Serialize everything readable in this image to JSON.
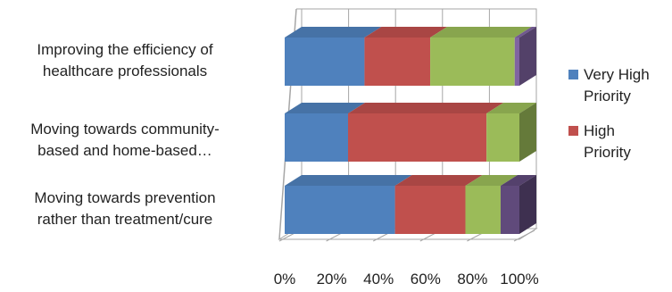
{
  "chart_data": {
    "type": "bar",
    "orientation": "horizontal",
    "stacked": "percent",
    "three_d": true,
    "categories": [
      "Improving the efficiency of healthcare professionals",
      "Moving towards community-based and home-based…",
      "Moving towards prevention rather than treatment/cure"
    ],
    "category_lines": [
      [
        "Improving the efficiency of",
        "healthcare professionals"
      ],
      [
        "Moving towards community-",
        "based and home-based…"
      ],
      [
        "Moving towards prevention",
        "rather than treatment/cure"
      ]
    ],
    "series": [
      {
        "name": "Very High Priority",
        "color": "#4F81BD",
        "values": [
          34,
          27,
          47
        ]
      },
      {
        "name": "High Priority",
        "color": "#C0504D",
        "values": [
          28,
          59,
          30
        ]
      },
      {
        "name": "",
        "color": "#9BBB59",
        "values": [
          36,
          14,
          15
        ]
      },
      {
        "name": "",
        "color": "#8064A2",
        "values": [
          2,
          0,
          0
        ]
      },
      {
        "name": "",
        "color": "#604A7B",
        "values": [
          0,
          0,
          8
        ]
      }
    ],
    "legend_entries": [
      {
        "lines": [
          "Very High",
          "Priority"
        ],
        "color": "#4F81BD"
      },
      {
        "lines": [
          "High",
          "Priority"
        ],
        "color": "#C0504D"
      }
    ],
    "x_ticks": [
      "0%",
      "20%",
      "40%",
      "60%",
      "80%",
      "100%"
    ],
    "xlim": [
      0,
      100
    ],
    "legend_position": "right",
    "grid": true
  }
}
